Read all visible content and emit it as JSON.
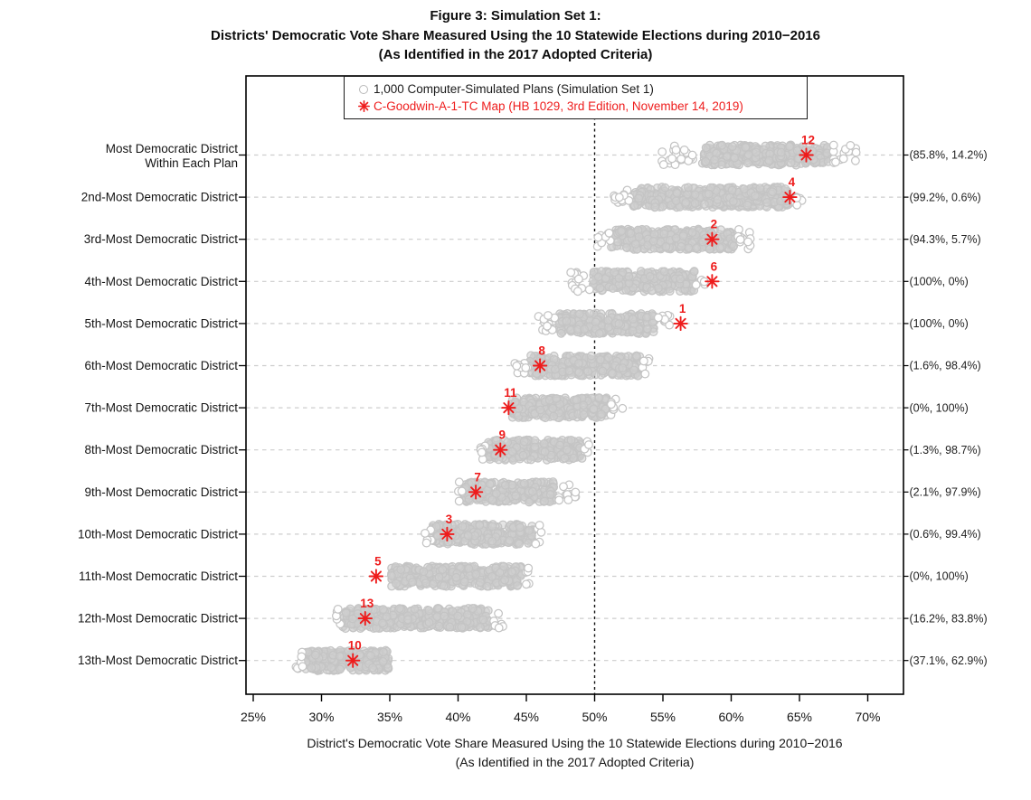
{
  "figure": {
    "title_lines": [
      "Figure 3: Simulation Set 1:",
      "Districts' Democratic Vote Share Measured Using the 10 Statewide Elections during 2010−2016",
      "(As Identified in the 2017 Adopted Criteria)"
    ]
  },
  "chart_data": {
    "type": "scatter",
    "title_lines": [
      "Figure 3: Simulation Set 1:",
      "Districts' Democratic Vote Share Measured Using the 10 Statewide Elections during 2010−2016",
      "(As Identified in the 2017 Adopted Criteria)"
    ],
    "xlabel_lines": [
      "District's Democratic Vote Share Measured Using the 10 Statewide Elections during 2010−2016",
      "(As Identified in the 2017 Adopted Criteria)"
    ],
    "legend": [
      {
        "marker": "open-circle",
        "label": "1,000 Computer-Simulated Plans (Simulation Set 1)"
      },
      {
        "marker": "red-asterisk",
        "label": "C-Goodwin-A-1-TC Map (HB 1029, 3rd Edition, November 14, 2019)"
      }
    ],
    "x_axis": {
      "tick_values": [
        25,
        30,
        35,
        40,
        45,
        50,
        55,
        60,
        65,
        70
      ],
      "tick_labels": [
        "25%",
        "30%",
        "35%",
        "40%",
        "45%",
        "50%",
        "55%",
        "60%",
        "65%",
        "70%"
      ],
      "domain_pct": [
        24.5,
        72.5
      ]
    },
    "reference_line_pct": 50,
    "grid": "dashed-horizontal-per-row",
    "legend_position": "top-inside",
    "colors": {
      "sim_stroke": "#c4c4c4",
      "sim_fill": "#d0d0d0",
      "enacted_red": "#ee1c1c",
      "grid": "#cdcdcd",
      "text": "#141414"
    },
    "rows": [
      {
        "label": "Most Democratic District",
        "label_line2": "Within Each Plan",
        "annotation": "(85.8%, 14.2%)",
        "enacted_district": 12,
        "enacted_share_pct": 65.5,
        "sim_dense_pct": [
          57.9,
          67.2
        ],
        "sim_sparse_left_pct": [
          54.9,
          57.3
        ],
        "sim_sparse_right_pct": [
          67.4,
          69.3
        ]
      },
      {
        "label": "2nd-Most Democratic District",
        "annotation": "(99.2%, 0.6%)",
        "enacted_district": 4,
        "enacted_share_pct": 64.3,
        "sim_dense_pct": [
          52.8,
          64.2
        ],
        "sim_sparse_left_pct": [
          51.4,
          52.8
        ],
        "sim_sparse_right_pct": [
          64.3,
          65.2
        ]
      },
      {
        "label": "3rd-Most Democratic District",
        "annotation": "(94.3%, 5.7%)",
        "enacted_district": 2,
        "enacted_share_pct": 58.6,
        "sim_dense_pct": [
          51.2,
          60.3
        ],
        "sim_sparse_left_pct": [
          50.2,
          51.2
        ],
        "sim_sparse_right_pct": [
          60.4,
          61.8
        ]
      },
      {
        "label": "4th-Most Democratic District",
        "annotation": "(100%, 0%)",
        "enacted_district": 6,
        "enacted_share_pct": 58.6,
        "sim_dense_pct": [
          49.9,
          57.3
        ],
        "sim_sparse_left_pct": [
          48.2,
          49.9
        ],
        "sim_sparse_right_pct": [
          57.4,
          58.1
        ]
      },
      {
        "label": "5th-Most Democratic District",
        "annotation": "(100%, 0%)",
        "enacted_district": 1,
        "enacted_share_pct": 56.3,
        "sim_dense_pct": [
          47.1,
          54.4
        ],
        "sim_sparse_left_pct": [
          45.8,
          47.1
        ],
        "sim_sparse_right_pct": [
          54.5,
          55.6
        ]
      },
      {
        "label": "6th-Most Democratic District",
        "annotation": "(1.6%, 98.4%)",
        "enacted_district": 8,
        "enacted_share_pct": 46.0,
        "sim_dense_pct": [
          45.2,
          53.3
        ],
        "sim_sparse_left_pct": [
          44.0,
          45.2
        ],
        "sim_sparse_right_pct": [
          53.4,
          54.0
        ]
      },
      {
        "label": "7th-Most Democratic District",
        "annotation": "(0%, 100%)",
        "enacted_district": 11,
        "enacted_share_pct": 43.7,
        "sim_dense_pct": [
          43.9,
          50.9
        ],
        "sim_sparse_left_pct": null,
        "sim_sparse_right_pct": [
          51.0,
          52.1
        ]
      },
      {
        "label": "8th-Most Democratic District",
        "annotation": "(1.3%, 98.7%)",
        "enacted_district": 9,
        "enacted_share_pct": 43.1,
        "sim_dense_pct": [
          42.2,
          49.1
        ],
        "sim_sparse_left_pct": [
          41.5,
          42.2
        ],
        "sim_sparse_right_pct": [
          49.2,
          49.8
        ]
      },
      {
        "label": "9th-Most Democratic District",
        "annotation": "(2.1%, 97.9%)",
        "enacted_district": 7,
        "enacted_share_pct": 41.3,
        "sim_dense_pct": [
          40.4,
          47.1
        ],
        "sim_sparse_left_pct": [
          40.0,
          40.4
        ],
        "sim_sparse_right_pct": [
          47.2,
          48.7
        ]
      },
      {
        "label": "10th-Most Democratic District",
        "annotation": "(0.6%, 99.4%)",
        "enacted_district": 3,
        "enacted_share_pct": 39.2,
        "sim_dense_pct": [
          38.1,
          45.5
        ],
        "sim_sparse_left_pct": [
          37.5,
          38.1
        ],
        "sim_sparse_right_pct": [
          45.6,
          46.1
        ]
      },
      {
        "label": "11th-Most Democratic District",
        "annotation": "(0%, 100%)",
        "enacted_district": 5,
        "enacted_share_pct": 34.0,
        "sim_dense_pct": [
          35.1,
          44.7
        ],
        "sim_sparse_left_pct": null,
        "sim_sparse_right_pct": [
          44.8,
          45.3
        ]
      },
      {
        "label": "12th-Most Democratic District",
        "annotation": "(16.2%, 83.8%)",
        "enacted_district": 13,
        "enacted_share_pct": 33.2,
        "sim_dense_pct": [
          31.4,
          42.4
        ],
        "sim_sparse_left_pct": [
          30.9,
          31.4
        ],
        "sim_sparse_right_pct": [
          42.5,
          43.4
        ]
      },
      {
        "label": "13th-Most Democratic District",
        "annotation": "(37.1%, 62.9%)",
        "enacted_district": 10,
        "enacted_share_pct": 32.3,
        "sim_dense_pct": [
          28.8,
          34.9
        ],
        "sim_sparse_left_pct": [
          28.0,
          28.8
        ],
        "sim_sparse_right_pct": null
      }
    ]
  }
}
